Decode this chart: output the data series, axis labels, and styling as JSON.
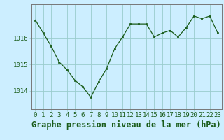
{
  "x": [
    0,
    1,
    2,
    3,
    4,
    5,
    6,
    7,
    8,
    9,
    10,
    11,
    12,
    13,
    14,
    15,
    16,
    17,
    18,
    19,
    20,
    21,
    22,
    23
  ],
  "y": [
    1016.7,
    1016.2,
    1015.7,
    1015.1,
    1014.8,
    1014.4,
    1014.15,
    1013.75,
    1014.35,
    1014.85,
    1015.6,
    1016.05,
    1016.55,
    1016.55,
    1016.55,
    1016.05,
    1016.2,
    1016.3,
    1016.05,
    1016.4,
    1016.85,
    1016.75,
    1016.85,
    1016.2
  ],
  "line_color": "#1a5c1a",
  "marker_color": "#1a5c1a",
  "bg_color": "#cceeff",
  "grid_color": "#99cccc",
  "axis_label_color": "#1a5c1a",
  "tick_label_color": "#1a5c1a",
  "xlabel": "Graphe pression niveau de la mer (hPa)",
  "ylim": [
    1013.3,
    1017.3
  ],
  "yticks": [
    1014,
    1015,
    1016
  ],
  "xlim": [
    -0.5,
    23.5
  ],
  "tick_fontsize": 6.5,
  "xlabel_fontsize": 8.5
}
